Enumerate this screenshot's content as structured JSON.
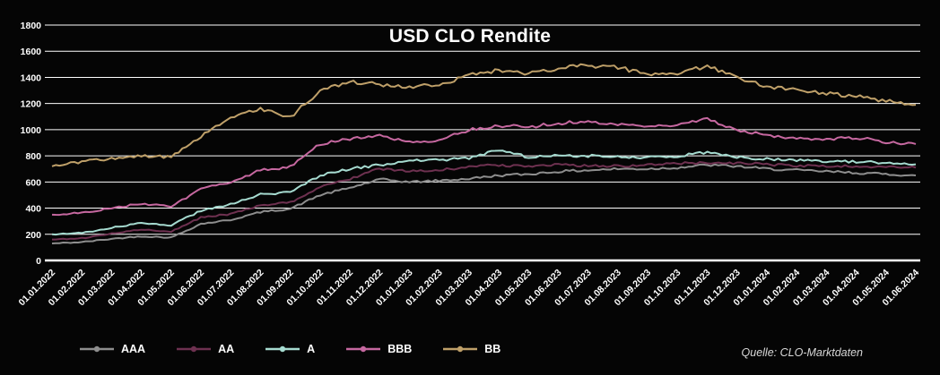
{
  "chart_data": {
    "type": "line",
    "title": "USD CLO Rendite",
    "xlabel": "",
    "ylabel": "",
    "ylim": [
      0,
      1800
    ],
    "ytick_step": 200,
    "grid": true,
    "legend_position": "bottom",
    "categories": [
      "01.01.2022",
      "01.02.2022",
      "01.03.2022",
      "01.04.2022",
      "01.05.2022",
      "01.06.2022",
      "01.07.2022",
      "01.08.2022",
      "01.09.2022",
      "01.10.2022",
      "01.11.2022",
      "01.12.2022",
      "01.01.2023",
      "01.02.2023",
      "01.03.2023",
      "01.04.2023",
      "01.05.2023",
      "01.06.2023",
      "01.07.2023",
      "01.08.2023",
      "01.09.2023",
      "01.10.2023",
      "01.11.2023",
      "01.12.2023",
      "01.01.2024",
      "01.02.2024",
      "01.03.2024",
      "01.04.2024",
      "01.05.2024",
      "01.06.2024"
    ],
    "series": [
      {
        "name": "AAA",
        "color": "#8e8e8e",
        "values": [
          130,
          140,
          165,
          185,
          175,
          280,
          310,
          370,
          395,
          500,
          555,
          620,
          600,
          610,
          625,
          650,
          660,
          680,
          690,
          700,
          700,
          710,
          730,
          720,
          700,
          690,
          680,
          670,
          660,
          650
        ]
      },
      {
        "name": "AA",
        "color": "#6e3150",
        "values": [
          160,
          170,
          205,
          235,
          220,
          330,
          355,
          420,
          445,
          560,
          625,
          700,
          680,
          690,
          715,
          730,
          720,
          730,
          725,
          720,
          730,
          740,
          750,
          745,
          735,
          725,
          720,
          720,
          715,
          710
        ]
      },
      {
        "name": "A",
        "color": "#a6dbd0",
        "values": [
          200,
          210,
          250,
          285,
          270,
          380,
          430,
          505,
          520,
          650,
          700,
          730,
          760,
          770,
          780,
          845,
          790,
          800,
          800,
          790,
          790,
          800,
          825,
          790,
          775,
          765,
          760,
          755,
          745,
          735
        ]
      },
      {
        "name": "BBB",
        "color": "#c668a0",
        "values": [
          350,
          365,
          400,
          435,
          410,
          545,
          600,
          690,
          715,
          890,
          930,
          950,
          905,
          920,
          1000,
          1030,
          1020,
          1050,
          1060,
          1040,
          1030,
          1040,
          1080,
          1000,
          960,
          935,
          930,
          940,
          905,
          890
        ]
      },
      {
        "name": "BB",
        "color": "#bfa069",
        "values": [
          720,
          755,
          780,
          800,
          790,
          950,
          1090,
          1160,
          1095,
          1300,
          1365,
          1345,
          1330,
          1340,
          1420,
          1455,
          1430,
          1470,
          1490,
          1480,
          1420,
          1430,
          1490,
          1400,
          1330,
          1300,
          1280,
          1255,
          1220,
          1190
        ]
      }
    ]
  },
  "source_note": "Quelle: CLO-Marktdaten",
  "colors": {
    "background": "#050505",
    "text": "#ffffff",
    "gridline": "#ffffff"
  }
}
